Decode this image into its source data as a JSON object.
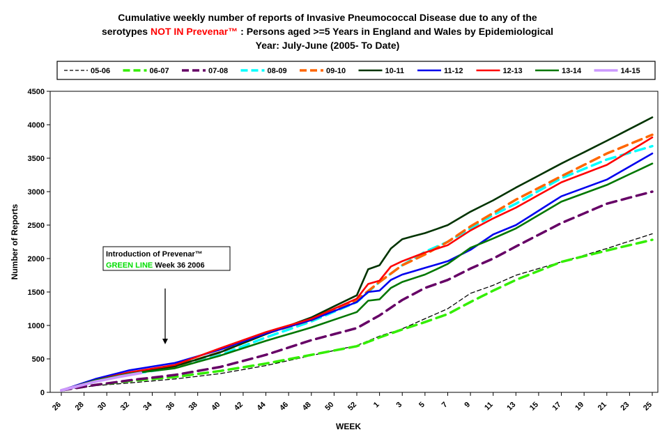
{
  "chart_data": {
    "type": "line",
    "title": {
      "line1": "Cumulative weekly number of reports of Invasive Pneumococcal Disease due to any of the",
      "line2_prefix": "serotypes ",
      "line2_highlight": "NOT IN Prevenar™",
      "line2_suffix": " :  Persons aged >=5 Years in England and Wales by Epidemiological",
      "line3": "Year: July-June (2005- To Date)"
    },
    "xlabel": "WEEK",
    "ylabel": "Number of Reports",
    "ylim": [
      0,
      4500
    ],
    "yticks": [
      "0",
      "500",
      "1000",
      "1500",
      "2000",
      "2500",
      "3000",
      "3500",
      "4000",
      "4500"
    ],
    "xtick_labels": [
      "26",
      "28",
      "30",
      "32",
      "34",
      "36",
      "38",
      "40",
      "42",
      "44",
      "46",
      "48",
      "50",
      "52",
      "1",
      "3",
      "5",
      "7",
      "9",
      "11",
      "13",
      "15",
      "17",
      "19",
      "21",
      "23",
      "25"
    ],
    "n_points": 53,
    "annotation": {
      "line1": "Introduction of Prevenar™",
      "line2_green": "GREEN  LINE",
      "line2_rest": " Week 36 2006"
    },
    "series": [
      {
        "name": "05-06",
        "color": "#000000",
        "style": "dash-thin",
        "anchors": [
          [
            0,
            30
          ],
          [
            3,
            100
          ],
          [
            6,
            140
          ],
          [
            10,
            200
          ],
          [
            14,
            280
          ],
          [
            18,
            400
          ],
          [
            22,
            550
          ],
          [
            26,
            700
          ],
          [
            28,
            840
          ],
          [
            30,
            950
          ],
          [
            32,
            1100
          ],
          [
            34,
            1250
          ],
          [
            36,
            1480
          ],
          [
            38,
            1600
          ],
          [
            40,
            1750
          ],
          [
            44,
            1950
          ],
          [
            48,
            2150
          ],
          [
            52,
            2370
          ]
        ]
      },
      {
        "name": "06-07",
        "color": "#33ee00",
        "style": "dash-thick",
        "anchors": [
          [
            0,
            30
          ],
          [
            3,
            110
          ],
          [
            6,
            170
          ],
          [
            10,
            230
          ],
          [
            14,
            320
          ],
          [
            18,
            430
          ],
          [
            22,
            560
          ],
          [
            26,
            690
          ],
          [
            28,
            820
          ],
          [
            30,
            940
          ],
          [
            32,
            1050
          ],
          [
            34,
            1170
          ],
          [
            36,
            1350
          ],
          [
            38,
            1520
          ],
          [
            40,
            1680
          ],
          [
            44,
            1950
          ],
          [
            48,
            2120
          ],
          [
            52,
            2280
          ]
        ]
      },
      {
        "name": "07-08",
        "color": "#660066",
        "style": "dash-thick",
        "anchors": [
          [
            0,
            30
          ],
          [
            3,
            110
          ],
          [
            6,
            180
          ],
          [
            10,
            260
          ],
          [
            14,
            380
          ],
          [
            18,
            560
          ],
          [
            22,
            780
          ],
          [
            26,
            960
          ],
          [
            28,
            1150
          ],
          [
            30,
            1380
          ],
          [
            32,
            1560
          ],
          [
            34,
            1680
          ],
          [
            36,
            1850
          ],
          [
            38,
            2000
          ],
          [
            40,
            2180
          ],
          [
            44,
            2530
          ],
          [
            48,
            2820
          ],
          [
            52,
            3000
          ]
        ]
      },
      {
        "name": "08-09",
        "color": "#00ffff",
        "style": "dash-thick",
        "anchors": [
          [
            0,
            30
          ],
          [
            3,
            180
          ],
          [
            6,
            270
          ],
          [
            10,
            370
          ],
          [
            14,
            560
          ],
          [
            18,
            820
          ],
          [
            22,
            1060
          ],
          [
            26,
            1350
          ],
          [
            28,
            1650
          ],
          [
            30,
            1900
          ],
          [
            32,
            2100
          ],
          [
            34,
            2250
          ],
          [
            36,
            2450
          ],
          [
            38,
            2650
          ],
          [
            40,
            2820
          ],
          [
            44,
            3200
          ],
          [
            48,
            3480
          ],
          [
            52,
            3680
          ]
        ]
      },
      {
        "name": "09-10",
        "color": "#ff6600",
        "style": "dash-thick",
        "anchors": [
          [
            0,
            30
          ],
          [
            3,
            180
          ],
          [
            6,
            280
          ],
          [
            10,
            390
          ],
          [
            14,
            600
          ],
          [
            18,
            880
          ],
          [
            22,
            1080
          ],
          [
            26,
            1380
          ],
          [
            28,
            1650
          ],
          [
            30,
            1900
          ],
          [
            32,
            2060
          ],
          [
            34,
            2250
          ],
          [
            36,
            2480
          ],
          [
            38,
            2680
          ],
          [
            40,
            2880
          ],
          [
            44,
            3230
          ],
          [
            48,
            3570
          ],
          [
            52,
            3850
          ]
        ]
      },
      {
        "name": "10-11",
        "color": "#003300",
        "style": "solid",
        "anchors": [
          [
            0,
            30
          ],
          [
            3,
            180
          ],
          [
            6,
            290
          ],
          [
            10,
            390
          ],
          [
            14,
            600
          ],
          [
            18,
            870
          ],
          [
            22,
            1120
          ],
          [
            26,
            1450
          ],
          [
            27,
            1840
          ],
          [
            28,
            1900
          ],
          [
            29,
            2150
          ],
          [
            30,
            2290
          ],
          [
            32,
            2380
          ],
          [
            34,
            2500
          ],
          [
            36,
            2700
          ],
          [
            38,
            2870
          ],
          [
            40,
            3060
          ],
          [
            44,
            3420
          ],
          [
            48,
            3760
          ],
          [
            52,
            4110
          ]
        ]
      },
      {
        "name": "11-12",
        "color": "#0000ee",
        "style": "solid",
        "anchors": [
          [
            0,
            30
          ],
          [
            3,
            200
          ],
          [
            6,
            330
          ],
          [
            10,
            440
          ],
          [
            14,
            640
          ],
          [
            18,
            880
          ],
          [
            22,
            1080
          ],
          [
            26,
            1350
          ],
          [
            27,
            1500
          ],
          [
            28,
            1520
          ],
          [
            29,
            1680
          ],
          [
            30,
            1760
          ],
          [
            32,
            1860
          ],
          [
            34,
            1960
          ],
          [
            36,
            2130
          ],
          [
            38,
            2360
          ],
          [
            40,
            2500
          ],
          [
            44,
            2930
          ],
          [
            48,
            3180
          ],
          [
            52,
            3570
          ]
        ]
      },
      {
        "name": "12-13",
        "color": "#ff0000",
        "style": "solid",
        "anchors": [
          [
            0,
            30
          ],
          [
            3,
            180
          ],
          [
            6,
            300
          ],
          [
            10,
            410
          ],
          [
            14,
            660
          ],
          [
            18,
            900
          ],
          [
            22,
            1100
          ],
          [
            26,
            1400
          ],
          [
            27,
            1620
          ],
          [
            28,
            1670
          ],
          [
            29,
            1880
          ],
          [
            30,
            1960
          ],
          [
            32,
            2090
          ],
          [
            34,
            2200
          ],
          [
            36,
            2420
          ],
          [
            38,
            2600
          ],
          [
            40,
            2760
          ],
          [
            44,
            3140
          ],
          [
            48,
            3400
          ],
          [
            52,
            3810
          ]
        ]
      },
      {
        "name": "13-14",
        "color": "#007700",
        "style": "solid",
        "anchors": [
          [
            0,
            30
          ],
          [
            3,
            180
          ],
          [
            6,
            280
          ],
          [
            10,
            360
          ],
          [
            14,
            550
          ],
          [
            18,
            770
          ],
          [
            22,
            970
          ],
          [
            26,
            1200
          ],
          [
            27,
            1370
          ],
          [
            28,
            1390
          ],
          [
            29,
            1560
          ],
          [
            30,
            1650
          ],
          [
            32,
            1760
          ],
          [
            34,
            1920
          ],
          [
            36,
            2160
          ],
          [
            38,
            2300
          ],
          [
            40,
            2450
          ],
          [
            44,
            2850
          ],
          [
            48,
            3100
          ],
          [
            52,
            3420
          ]
        ]
      },
      {
        "name": "14-15",
        "color": "#cc99ff",
        "style": "solid-thick",
        "anchors": [
          [
            0,
            30
          ],
          [
            3,
            160
          ],
          [
            5,
            230
          ],
          [
            7,
            290
          ]
        ]
      }
    ]
  }
}
